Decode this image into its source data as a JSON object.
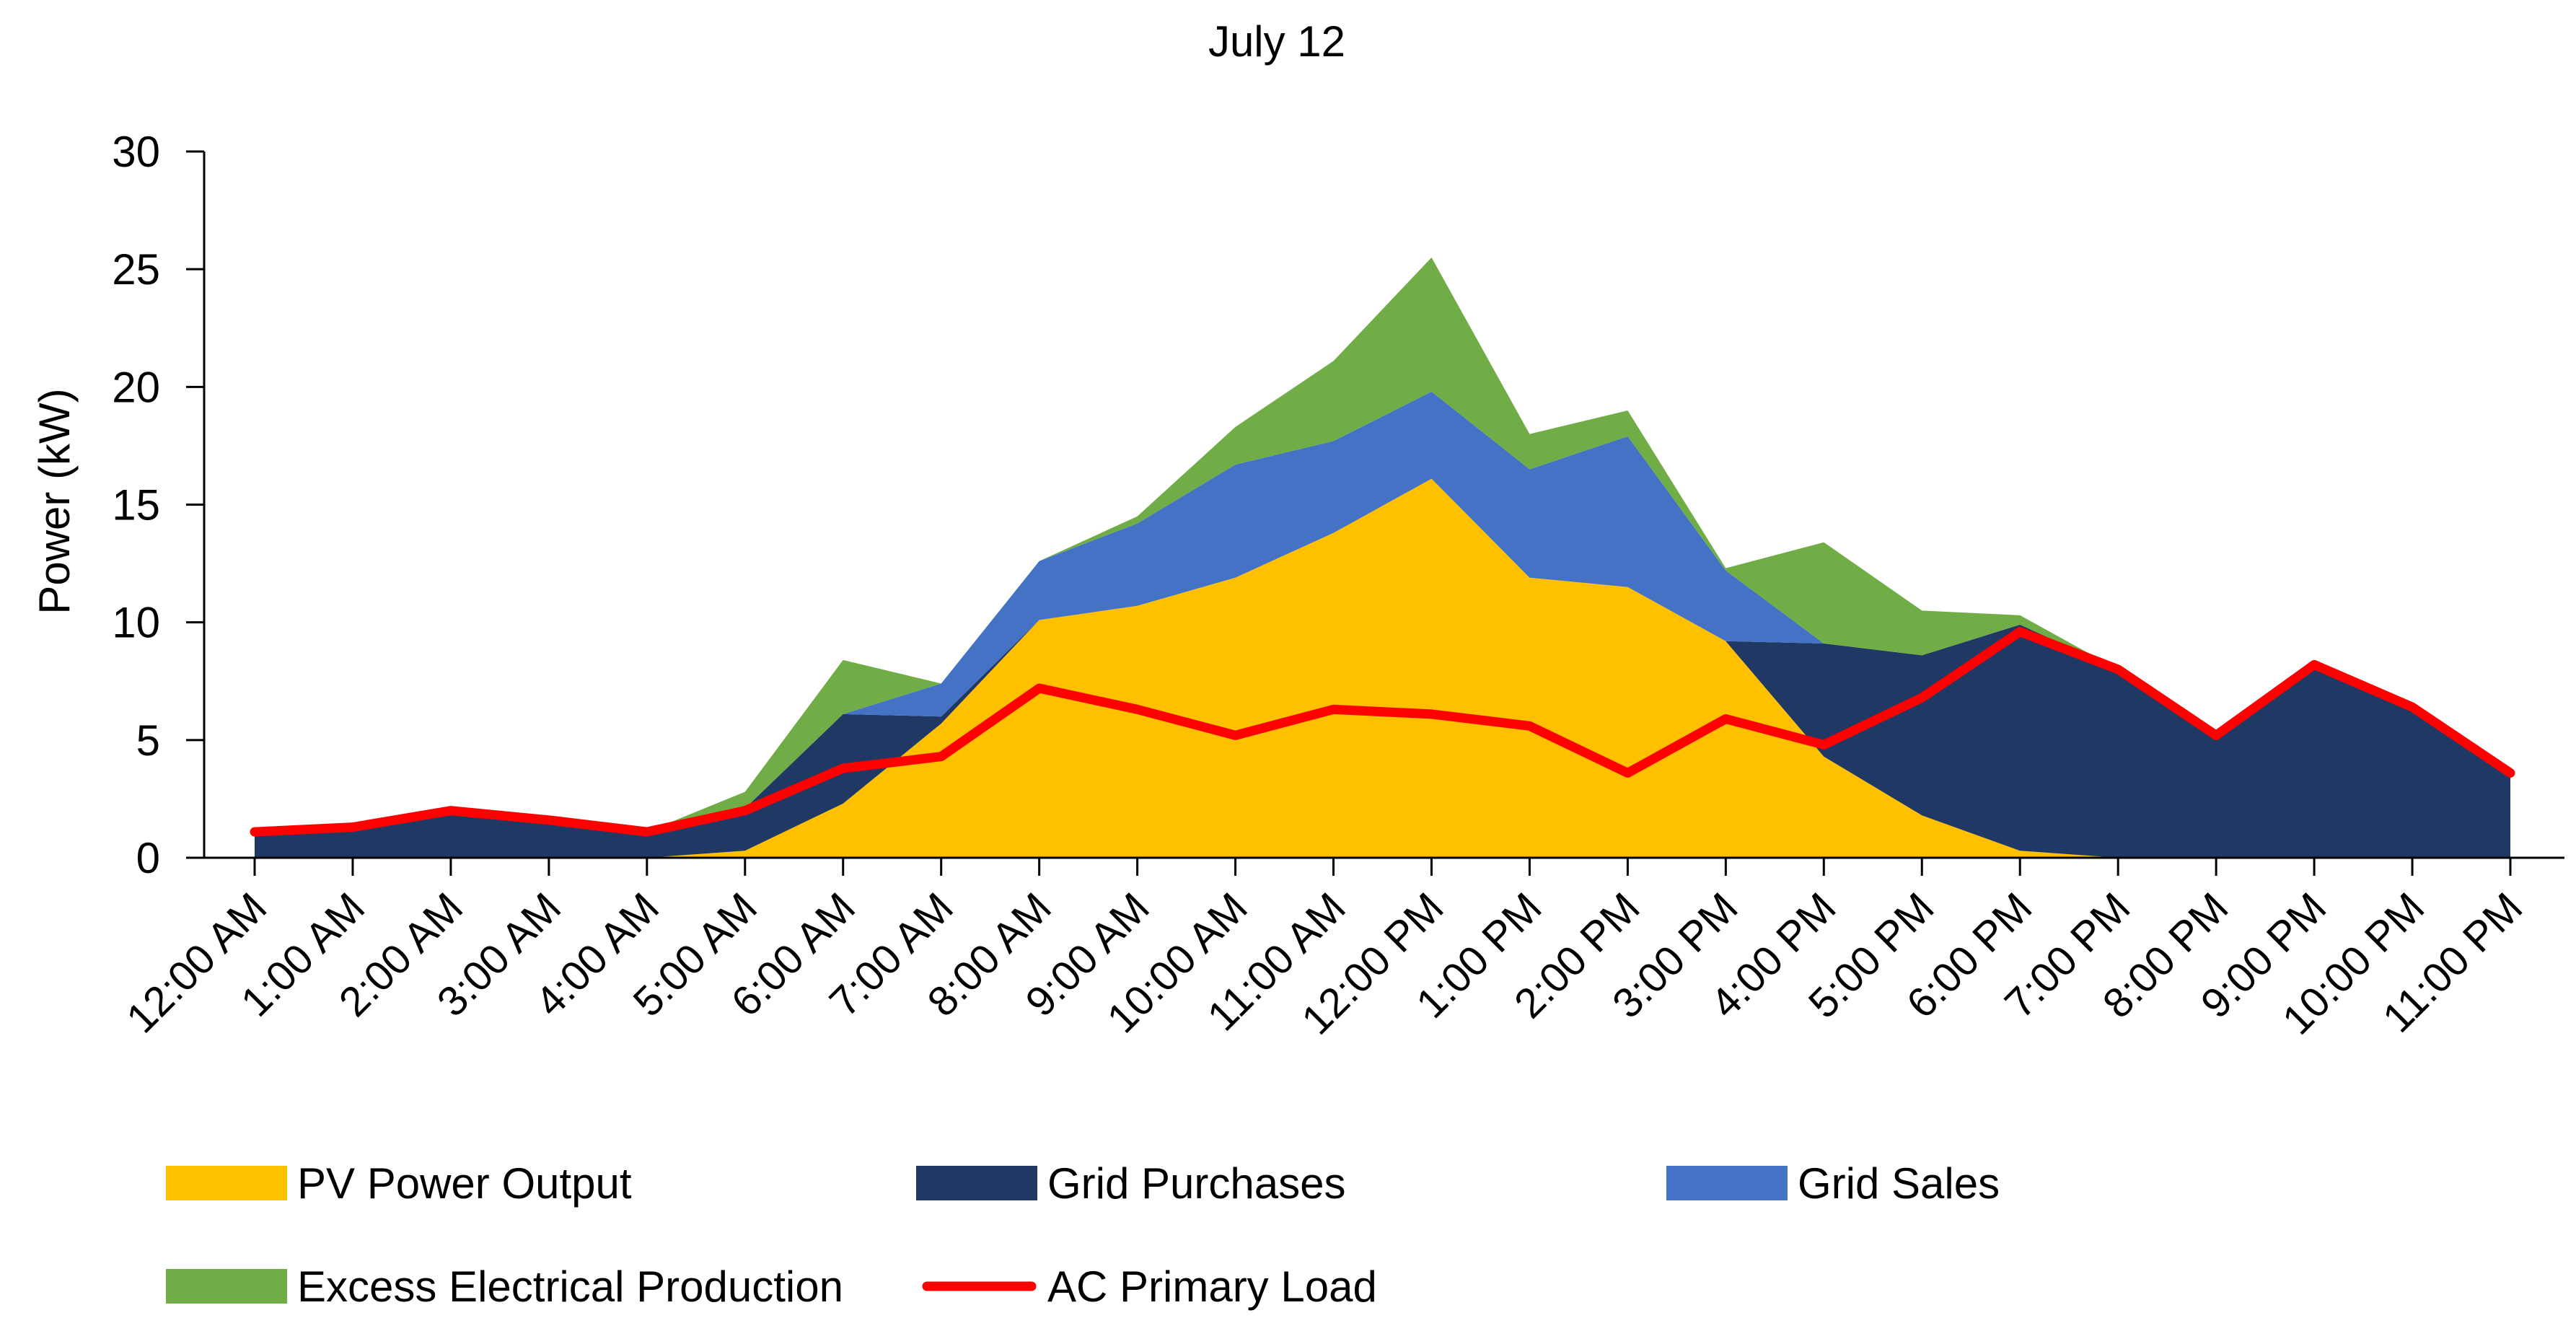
{
  "chart_data": {
    "type": "area",
    "title": "July 12",
    "xlabel": "",
    "ylabel": "Power (kW)",
    "ylim": [
      0,
      30
    ],
    "yticks": [
      0,
      5,
      10,
      15,
      20,
      25,
      30
    ],
    "grid": false,
    "legend_position": "bottom",
    "categories": [
      "12:00 AM",
      "1:00 AM",
      "2:00 AM",
      "3:00 AM",
      "4:00 AM",
      "5:00 AM",
      "6:00 AM",
      "7:00 AM",
      "8:00 AM",
      "9:00 AM",
      "10:00 AM",
      "11:00 AM",
      "12:00 PM",
      "1:00 PM",
      "2:00 PM",
      "3:00 PM",
      "4:00 PM",
      "5:00 PM",
      "6:00 PM",
      "7:00 PM",
      "8:00 PM",
      "9:00 PM",
      "10:00 PM",
      "11:00 PM"
    ],
    "series": [
      {
        "name": "PV Power Output",
        "kind": "stacked-area",
        "color": "#FFC000",
        "values": [
          0,
          0,
          0,
          0,
          0,
          0.3,
          2.3,
          5.7,
          10.1,
          10.7,
          11.9,
          13.8,
          16.1,
          11.9,
          11.5,
          9.2,
          4.3,
          1.8,
          0.3,
          0,
          0,
          0,
          0,
          0
        ]
      },
      {
        "name": "Grid Purchases",
        "kind": "stacked-area",
        "color": "#203864",
        "values": [
          1.1,
          1.3,
          2.0,
          1.6,
          1.1,
          1.8,
          3.8,
          0.3,
          0,
          0,
          0,
          0,
          0,
          0,
          0,
          0,
          4.8,
          6.8,
          9.6,
          8.0,
          5.2,
          8.2,
          6.4,
          3.6
        ]
      },
      {
        "name": "Grid Sales",
        "kind": "stacked-area",
        "color": "#4472C4",
        "values": [
          0,
          0,
          0,
          0,
          0,
          0,
          0,
          1.4,
          2.5,
          3.5,
          4.8,
          3.9,
          3.7,
          4.6,
          6.4,
          3.0,
          0,
          0,
          0,
          0,
          0,
          0,
          0,
          0
        ]
      },
      {
        "name": "Excess Electrical Production",
        "kind": "stacked-area",
        "color": "#70AD47",
        "values": [
          0,
          0,
          0,
          0,
          0,
          0.7,
          2.3,
          0,
          0,
          0.3,
          1.6,
          3.4,
          5.7,
          1.5,
          1.1,
          0.1,
          4.3,
          1.9,
          0.4,
          0,
          0,
          0,
          0,
          0
        ]
      },
      {
        "name": "AC Primary Load",
        "kind": "line",
        "color": "#FF0000",
        "values": [
          1.1,
          1.3,
          2.0,
          1.6,
          1.1,
          2.0,
          3.8,
          4.3,
          7.2,
          6.3,
          5.2,
          6.3,
          6.1,
          5.6,
          3.6,
          5.9,
          4.8,
          6.8,
          9.6,
          8.0,
          5.2,
          8.2,
          6.4,
          3.6
        ]
      }
    ]
  }
}
